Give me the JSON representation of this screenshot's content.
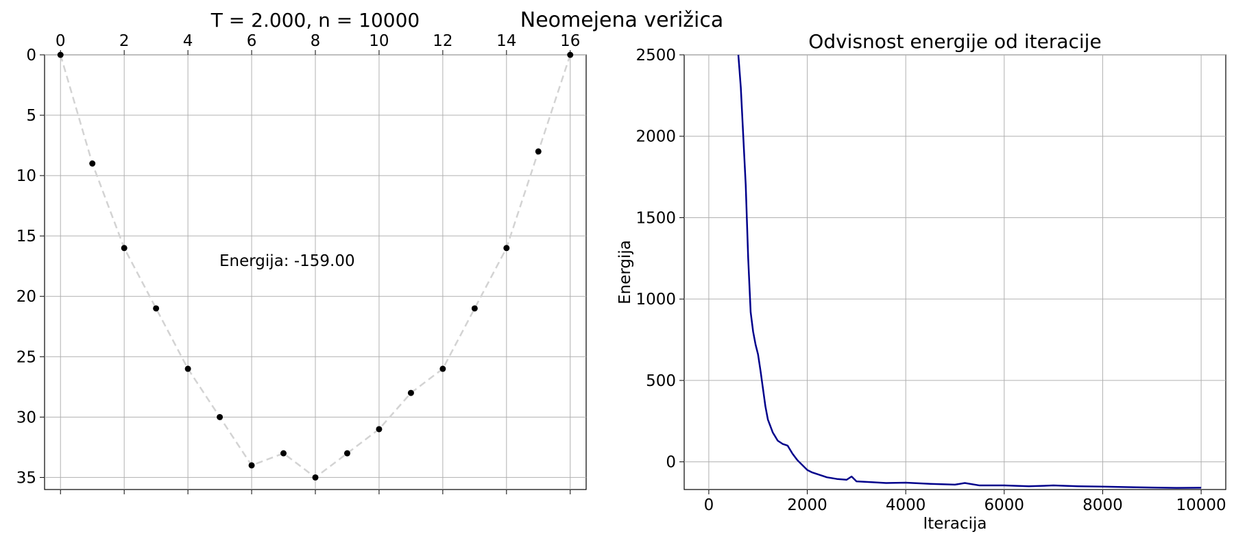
{
  "figure": {
    "suptitle": "Neomejena verižica"
  },
  "chart_data": [
    {
      "type": "line",
      "title": "T = 2.000, n = 10000",
      "xlabel": "",
      "ylabel": "",
      "xlim": [
        -0.5,
        16.5
      ],
      "ylim": [
        36,
        0
      ],
      "y_inverted": true,
      "x_axis_position": "top",
      "xticks": [
        0,
        2,
        4,
        6,
        8,
        10,
        12,
        14,
        16
      ],
      "yticks": [
        0,
        5,
        10,
        15,
        20,
        25,
        30,
        35
      ],
      "grid": true,
      "line_style": "dashed",
      "line_color": "#d3d3d3",
      "marker_color": "#000000",
      "x": [
        0,
        1,
        2,
        3,
        4,
        5,
        6,
        7,
        8,
        9,
        10,
        11,
        12,
        13,
        14,
        15,
        16
      ],
      "y": [
        0,
        9,
        16,
        21,
        26,
        30,
        34,
        33,
        35,
        33,
        31,
        28,
        26,
        21,
        16,
        8,
        0
      ],
      "annotation": "Energija: -159.00"
    },
    {
      "type": "line",
      "title": "Odvisnost energije od iteracije",
      "xlabel": "Iteracija",
      "ylabel": "Energija",
      "xlim": [
        -500,
        10500
      ],
      "ylim": [
        -170,
        2500
      ],
      "xticks": [
        0,
        2000,
        4000,
        6000,
        8000,
        10000
      ],
      "yticks": [
        0,
        500,
        1000,
        1500,
        2000,
        2500
      ],
      "grid": true,
      "line_color": "#00008b",
      "x": [
        600,
        650,
        700,
        750,
        800,
        850,
        900,
        950,
        1000,
        1050,
        1100,
        1150,
        1200,
        1300,
        1400,
        1500,
        1600,
        1700,
        1800,
        1900,
        2000,
        2100,
        2200,
        2400,
        2600,
        2800,
        2900,
        3000,
        3300,
        3600,
        4000,
        4500,
        5000,
        5200,
        5500,
        6000,
        6500,
        7000,
        7500,
        8000,
        8500,
        9000,
        9500,
        10000
      ],
      "y": [
        2500,
        2300,
        2000,
        1700,
        1250,
        920,
        800,
        720,
        660,
        560,
        450,
        340,
        260,
        180,
        130,
        110,
        100,
        50,
        10,
        -20,
        -50,
        -65,
        -75,
        -95,
        -105,
        -110,
        -90,
        -120,
        -125,
        -130,
        -128,
        -135,
        -140,
        -130,
        -145,
        -145,
        -150,
        -145,
        -150,
        -152,
        -155,
        -158,
        -160,
        -159
      ]
    }
  ]
}
